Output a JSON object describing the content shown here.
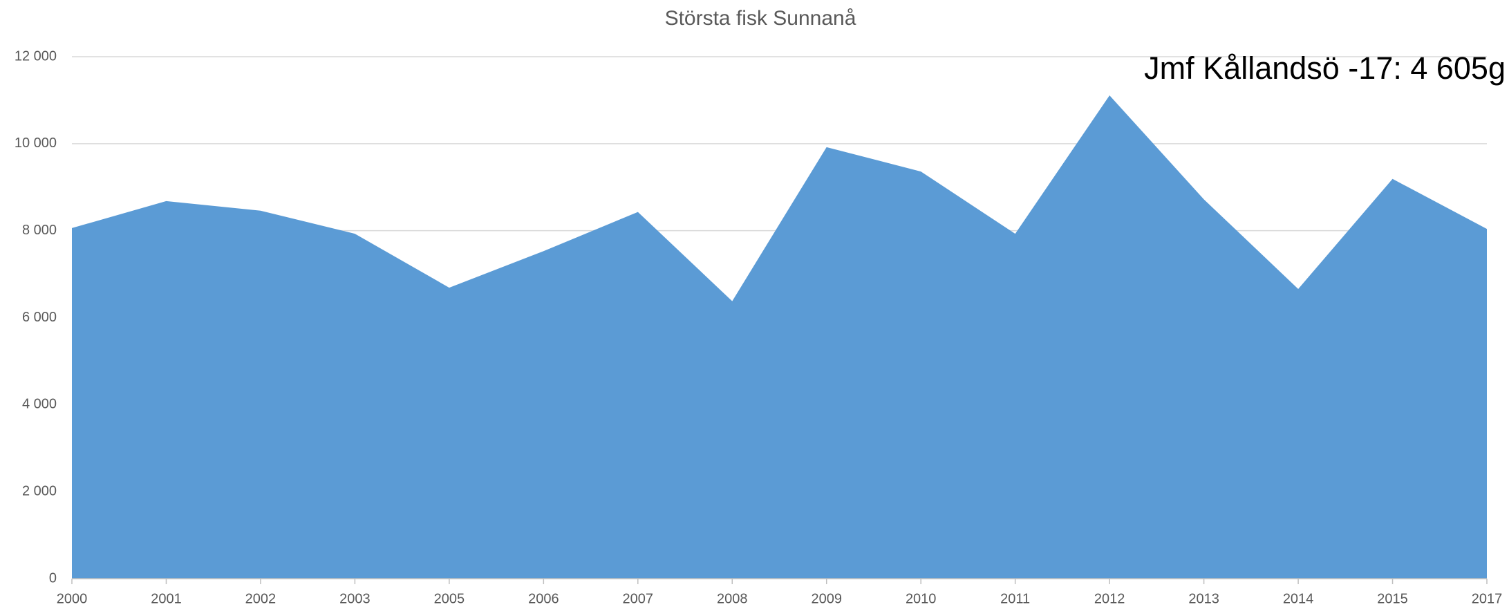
{
  "chart_data": {
    "type": "area",
    "title": "Största fisk Sunnanå",
    "annotation": "Jmf Kållandsö -17: 4 605g",
    "categories": [
      "2000",
      "2001",
      "2002",
      "2003",
      "2005",
      "2006",
      "2007",
      "2008",
      "2009",
      "2010",
      "2011",
      "2012",
      "2013",
      "2014",
      "2015",
      "2017"
    ],
    "values": [
      8060,
      8680,
      8460,
      7930,
      6690,
      7530,
      8430,
      6380,
      9920,
      9360,
      7930,
      11110,
      8720,
      6660,
      9190,
      8040
    ],
    "color": "#5b9bd5",
    "ylim": [
      0,
      12000
    ],
    "yticks": [
      0,
      {
        "value": 2000,
        "label": "2 000"
      },
      {
        "value": 4000,
        "label": "4 000"
      },
      {
        "value": 6000,
        "label": "6 000"
      },
      {
        "value": 8000,
        "label": "8 000"
      },
      {
        "value": 10000,
        "label": "10 000"
      },
      {
        "value": 12000,
        "label": "12 000"
      }
    ],
    "grid": true
  }
}
